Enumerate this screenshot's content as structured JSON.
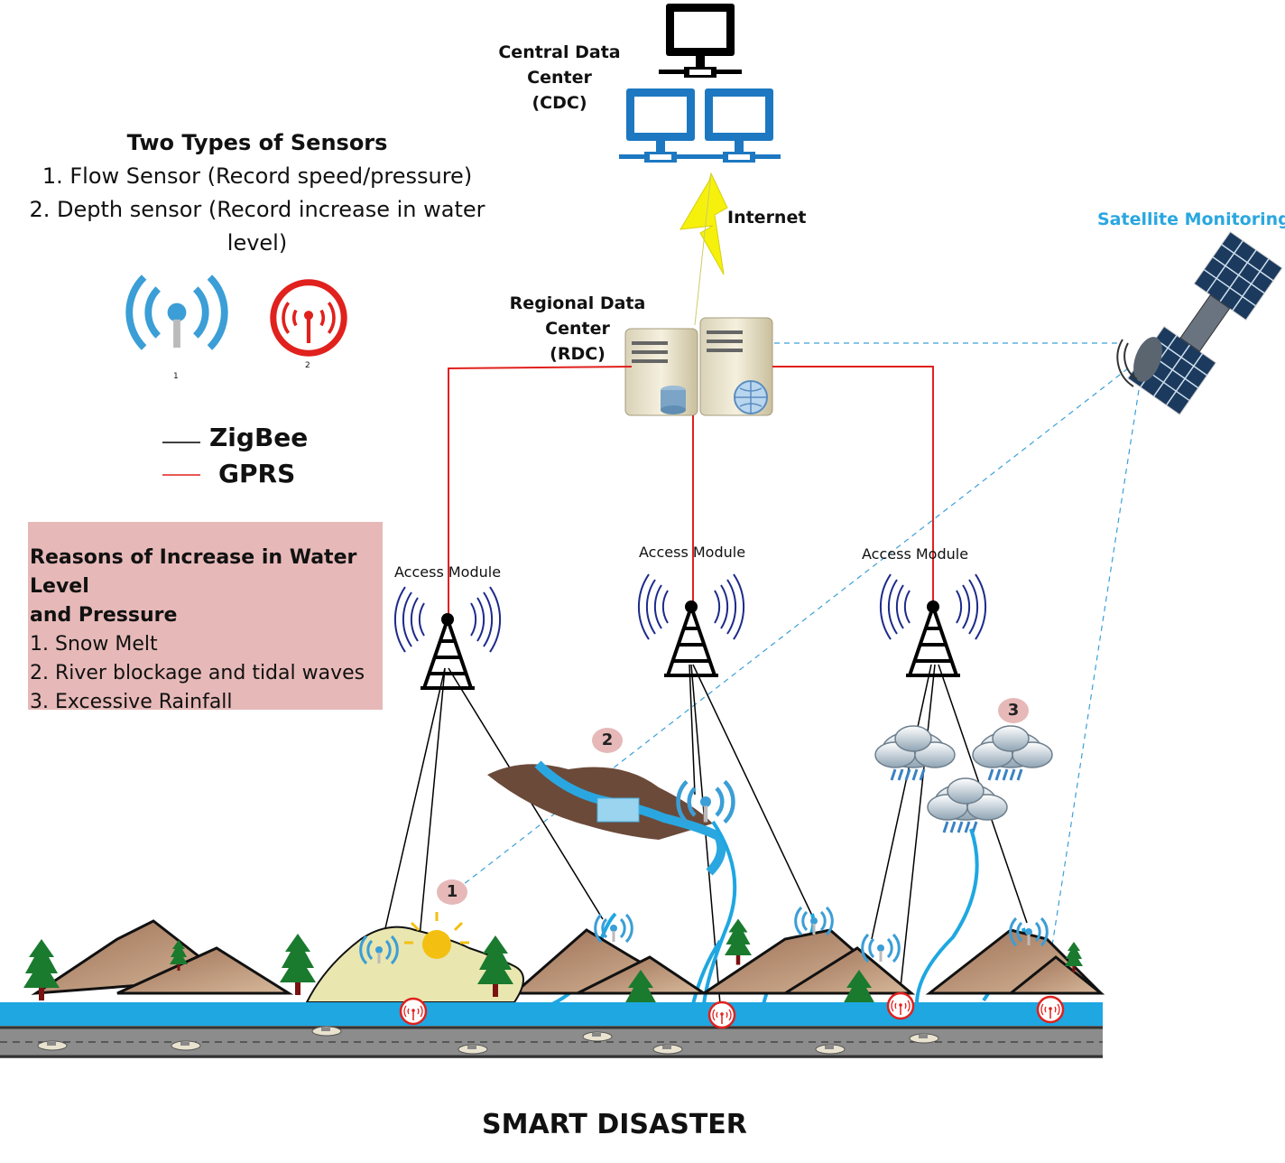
{
  "title": "SMART DISASTER",
  "cdc": {
    "line1": "Central Data Center",
    "line2": "(CDC)"
  },
  "internet": "Internet",
  "rdc": {
    "line1": "Regional Data Center",
    "line2": "(RDC)"
  },
  "satellite": "Satellite Monitoring",
  "access_module": [
    "Access Module",
    "Access Module",
    "Access Module"
  ],
  "sensors": {
    "title": "Two Types of Sensors",
    "items": [
      "1. Flow Sensor (Record speed/pressure)",
      "2. Depth sensor (Record increase in water",
      "level)"
    ],
    "icon_labels": [
      "1",
      "2"
    ]
  },
  "legend": {
    "items": [
      {
        "label": "ZigBee",
        "color": "#000000"
      },
      {
        "label": "GPRS",
        "color": "#e0211d"
      }
    ]
  },
  "reasons": {
    "title_line1": "Reasons of Increase in Water Level",
    "title_line2": "and Pressure",
    "items": [
      "1. Snow Melt",
      "2. River blockage and tidal waves",
      "3. Excessive Rainfall"
    ]
  },
  "markers": [
    "1",
    "2",
    "3"
  ],
  "icons": [
    "computer-icon",
    "server-icon",
    "lightning-icon",
    "satellite-icon",
    "tower-icon",
    "flow-sensor-icon",
    "depth-sensor-icon",
    "cloud-rain-icon",
    "mountain-icon",
    "tree-icon",
    "car-icon"
  ],
  "colors": {
    "gprs": "#e0211d",
    "zigbee": "#000000",
    "satellite_link": "#3aa0d8",
    "water": "#1ea7e1",
    "road": "#8c8c8c",
    "reasons_bg": "#e6b9b8",
    "sat_label": "#2aa7e0"
  }
}
